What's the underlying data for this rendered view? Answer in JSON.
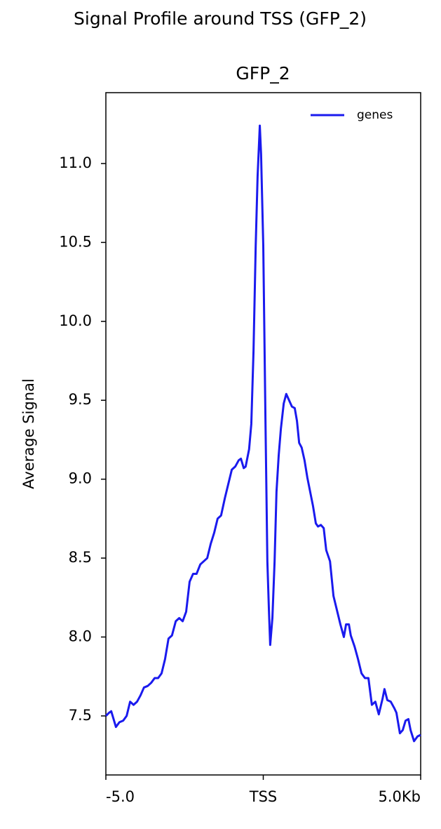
{
  "chart_data": {
    "type": "line",
    "title": "Signal Profile around TSS (GFP_2)",
    "subtitle": "GFP_2",
    "y_label": "Average Signal",
    "x": [
      -5,
      -4.9,
      -4.83,
      -4.68,
      -4.57,
      -4.45,
      -4.34,
      -4.23,
      -4.12,
      -4.01,
      -3.9,
      -3.79,
      -3.67,
      -3.56,
      -3.45,
      -3.34,
      -3.23,
      -3.12,
      -3.01,
      -2.9,
      -2.78,
      -2.67,
      -2.56,
      -2.45,
      -2.34,
      -2.23,
      -2.12,
      -2.0,
      -1.89,
      -1.78,
      -1.67,
      -1.56,
      -1.45,
      -1.34,
      -1.22,
      -1.11,
      -1.0,
      -0.89,
      -0.78,
      -0.71,
      -0.62,
      -0.56,
      -0.45,
      -0.38,
      -0.31,
      -0.24,
      -0.18,
      -0.11,
      -0.07,
      0,
      0.07,
      0.13,
      0.18,
      0.22,
      0.29,
      0.36,
      0.42,
      0.49,
      0.56,
      0.65,
      0.73,
      0.82,
      0.91,
      1.0,
      1.07,
      1.14,
      1.22,
      1.31,
      1.4,
      1.49,
      1.58,
      1.67,
      1.74,
      1.83,
      1.92,
      2.0,
      2.12,
      2.23,
      2.34,
      2.45,
      2.56,
      2.63,
      2.72,
      2.78,
      2.9,
      3.01,
      3.12,
      3.23,
      3.34,
      3.45,
      3.56,
      3.67,
      3.79,
      3.85,
      3.94,
      4.05,
      4.16,
      4.23,
      4.34,
      4.43,
      4.52,
      4.61,
      4.68,
      4.79,
      4.9,
      5.0
    ],
    "series": [
      {
        "name": "genes",
        "color": "#1a1aee",
        "values": [
          7.5,
          7.52,
          7.53,
          7.43,
          7.46,
          7.47,
          7.5,
          7.59,
          7.57,
          7.59,
          7.63,
          7.68,
          7.69,
          7.71,
          7.74,
          7.74,
          7.77,
          7.86,
          7.99,
          8.01,
          8.1,
          8.12,
          8.1,
          8.16,
          8.35,
          8.4,
          8.4,
          8.46,
          8.48,
          8.5,
          8.59,
          8.66,
          8.75,
          8.77,
          8.88,
          8.97,
          9.06,
          9.08,
          9.12,
          9.13,
          9.07,
          9.08,
          9.19,
          9.35,
          9.81,
          10.48,
          10.92,
          11.24,
          11.06,
          10.48,
          9.37,
          8.48,
          8.17,
          7.95,
          8.12,
          8.48,
          8.92,
          9.15,
          9.32,
          9.48,
          9.54,
          9.5,
          9.46,
          9.45,
          9.37,
          9.23,
          9.2,
          9.12,
          9.01,
          8.92,
          8.83,
          8.72,
          8.7,
          8.71,
          8.69,
          8.55,
          8.48,
          8.26,
          8.17,
          8.08,
          8.0,
          8.08,
          8.08,
          8.01,
          7.94,
          7.86,
          7.77,
          7.74,
          7.74,
          7.57,
          7.59,
          7.51,
          7.61,
          7.67,
          7.6,
          7.59,
          7.55,
          7.52,
          7.39,
          7.41,
          7.47,
          7.48,
          7.41,
          7.34,
          7.37,
          7.38
        ]
      }
    ],
    "xlim": [
      -5,
      5
    ],
    "xticks": [
      {
        "value": -5,
        "label": "-5.0"
      },
      {
        "value": 0,
        "label": "TSS"
      },
      {
        "value": 5,
        "label": "5.0Kb"
      }
    ],
    "ylim": [
      7.126,
      11.449
    ],
    "yticks": [
      7.5,
      {
        "value": 8,
        "label": "8.0"
      },
      8.5,
      {
        "value": 9,
        "label": "9.0"
      },
      9.5,
      {
        "value": 10,
        "label": "10.0"
      },
      10.5,
      {
        "value": 11,
        "label": "11.0"
      }
    ],
    "grid": false,
    "legend": "upper right"
  }
}
